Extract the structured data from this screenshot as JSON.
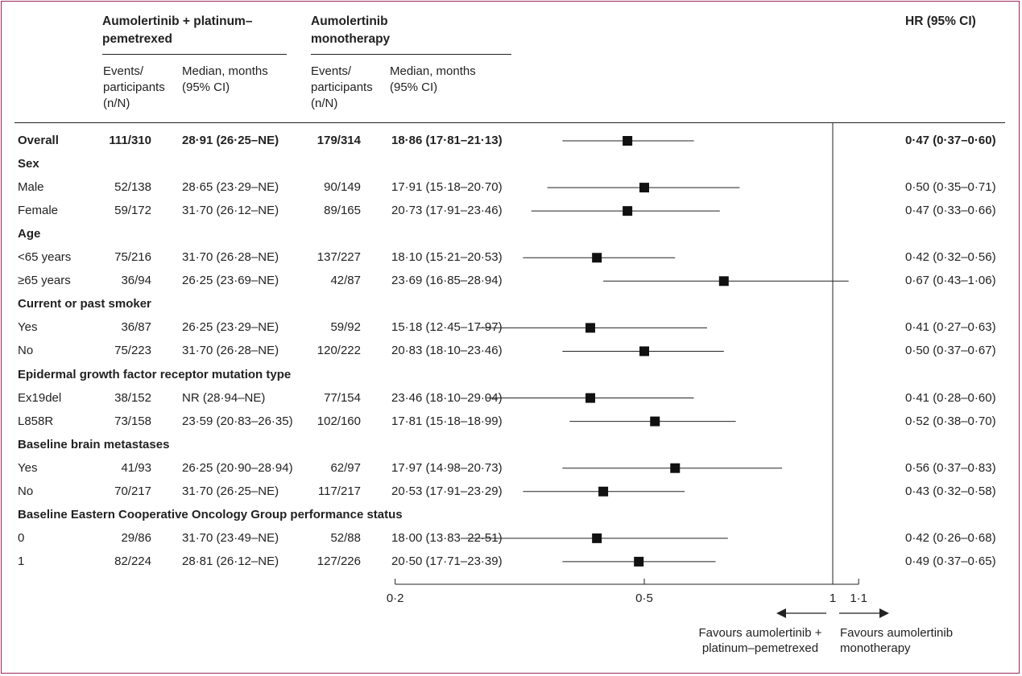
{
  "headers": {
    "group_a": "Aumolertinib + platinum–pemetrexed",
    "group_b": "Aumolertinib monotherapy",
    "hr": "HR (95% CI)",
    "events": "Events/ participants (n/N)",
    "median": "Median, months (95% CI)"
  },
  "rows": [
    {
      "label": "Overall",
      "kind": "overall",
      "a_ev": "111/310",
      "a_md": "28·91 (26·25–NE)",
      "b_ev": "179/314",
      "b_md": "18·86 (17·81–21·13)",
      "hr_text": "0·47 (0·37–0·60)"
    },
    {
      "label": "Sex",
      "kind": "category"
    },
    {
      "label": "Male",
      "kind": "row",
      "a_ev": "52/138",
      "a_md": "28·65 (23·29–NE)",
      "b_ev": "90/149",
      "b_md": "17·91 (15·18–20·70)",
      "hr_text": "0·50 (0·35–0·71)"
    },
    {
      "label": "Female",
      "kind": "row",
      "a_ev": "59/172",
      "a_md": "31·70 (26·12–NE)",
      "b_ev": "89/165",
      "b_md": "20·73 (17·91–23·46)",
      "hr_text": "0·47 (0·33–0·66)"
    },
    {
      "label": "Age",
      "kind": "category"
    },
    {
      "label": "<65 years",
      "kind": "row",
      "a_ev": "75/216",
      "a_md": "31·70 (26·28–NE)",
      "b_ev": "137/227",
      "b_md": "18·10 (15·21–20·53)",
      "hr_text": "0·42 (0·32–0·56)"
    },
    {
      "label": "≥65 years",
      "kind": "row",
      "a_ev": "36/94",
      "a_md": "26·25 (23·69–NE)",
      "b_ev": "42/87",
      "b_md": "23·69 (16·85–28·94)",
      "hr_text": "0·67 (0·43–1·06)"
    },
    {
      "label": "Current or past smoker",
      "kind": "category"
    },
    {
      "label": "Yes",
      "kind": "row",
      "a_ev": "36/87",
      "a_md": "26·25 (23·29–NE)",
      "b_ev": "59/92",
      "b_md": "15·18 (12·45–17·97)",
      "hr_text": "0·41 (0·27–0·63)"
    },
    {
      "label": "No",
      "kind": "row",
      "a_ev": "75/223",
      "a_md": "31·70 (26·28–NE)",
      "b_ev": "120/222",
      "b_md": "20·83 (18·10–23·46)",
      "hr_text": "0·50 (0·37–0·67)"
    },
    {
      "label": "Epidermal growth factor receptor mutation type",
      "kind": "category"
    },
    {
      "label": "Ex19del",
      "kind": "row",
      "a_ev": "38/152",
      "a_md": "NR (28·94–NE)",
      "b_ev": "77/154",
      "b_md": "23·46 (18·10–29·04)",
      "hr_text": "0·41 (0·28–0·60)"
    },
    {
      "label": "L858R",
      "kind": "row",
      "a_ev": "73/158",
      "a_md": "23·59 (20·83–26·35)",
      "b_ev": "102/160",
      "b_md": "17·81 (15·18–18·99)",
      "hr_text": "0·52 (0·38–0·70)"
    },
    {
      "label": "Baseline brain metastases",
      "kind": "category"
    },
    {
      "label": "Yes",
      "kind": "row",
      "a_ev": "41/93",
      "a_md": "26·25 (20·90–28·94)",
      "b_ev": "62/97",
      "b_md": "17·97 (14·98–20·73)",
      "hr_text": "0·56 (0·37–0·83)"
    },
    {
      "label": "No",
      "kind": "row",
      "a_ev": "70/217",
      "a_md": "31·70 (26·25–NE)",
      "b_ev": "117/217",
      "b_md": "20·53 (17·91–23·29)",
      "hr_text": "0·43 (0·32–0·58)"
    },
    {
      "label": "Baseline Eastern Cooperative Oncology Group performance status",
      "kind": "category"
    },
    {
      "label": "0",
      "kind": "row",
      "a_ev": "29/86",
      "a_md": "31·70 (23·49–NE)",
      "b_ev": "52/88",
      "b_md": "18·00 (13·83–22·51)",
      "hr_text": "0·42 (0·26–0·68)"
    },
    {
      "label": "1",
      "kind": "row",
      "a_ev": "82/224",
      "a_md": "28·81 (26·12–NE)",
      "b_ev": "127/226",
      "b_md": "20·50 (17·71–23·39)",
      "hr_text": "0·49 (0·37–0·65)"
    }
  ],
  "favours": {
    "left": "Favours aumolertinib + platinum–pemetrexed",
    "right": "Favours aumolertinib monotherapy"
  },
  "chart_data": {
    "type": "forest",
    "x_scale": "log",
    "xlim": [
      0.2,
      1.1
    ],
    "x_ticks": [
      {
        "value": 0.2,
        "label": "0·2"
      },
      {
        "value": 0.5,
        "label": "0·5"
      },
      {
        "value": 1,
        "label": "1"
      },
      {
        "value": 1.1,
        "label": "1·1"
      }
    ],
    "reference_line": 1,
    "points": [
      {
        "row": 0,
        "hr": 0.47,
        "lo": 0.37,
        "hi": 0.6
      },
      {
        "row": 2,
        "hr": 0.5,
        "lo": 0.35,
        "hi": 0.71
      },
      {
        "row": 3,
        "hr": 0.47,
        "lo": 0.33,
        "hi": 0.66
      },
      {
        "row": 5,
        "hr": 0.42,
        "lo": 0.32,
        "hi": 0.56
      },
      {
        "row": 6,
        "hr": 0.67,
        "lo": 0.43,
        "hi": 1.06
      },
      {
        "row": 8,
        "hr": 0.41,
        "lo": 0.27,
        "hi": 0.63
      },
      {
        "row": 9,
        "hr": 0.5,
        "lo": 0.37,
        "hi": 0.67
      },
      {
        "row": 11,
        "hr": 0.41,
        "lo": 0.28,
        "hi": 0.6
      },
      {
        "row": 12,
        "hr": 0.52,
        "lo": 0.38,
        "hi": 0.7
      },
      {
        "row": 14,
        "hr": 0.56,
        "lo": 0.37,
        "hi": 0.83
      },
      {
        "row": 15,
        "hr": 0.43,
        "lo": 0.32,
        "hi": 0.58
      },
      {
        "row": 17,
        "hr": 0.42,
        "lo": 0.26,
        "hi": 0.68
      },
      {
        "row": 18,
        "hr": 0.49,
        "lo": 0.37,
        "hi": 0.65
      }
    ]
  }
}
